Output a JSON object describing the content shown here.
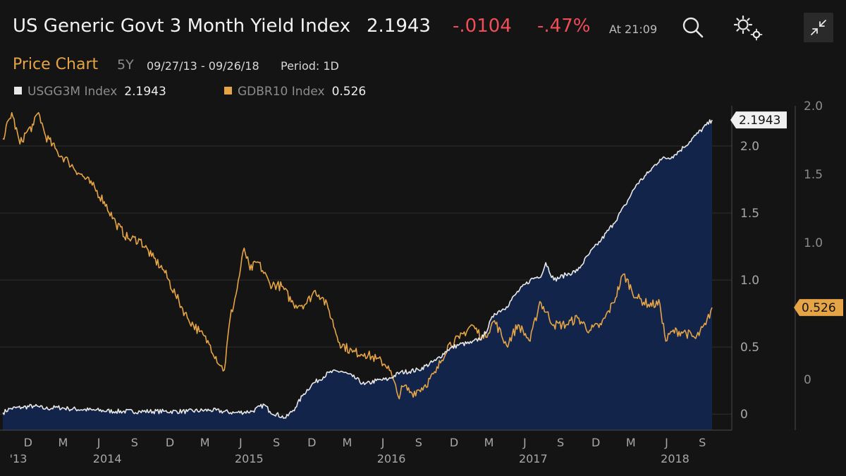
{
  "header": {
    "title": "US Generic Govt 3 Month Yield Index",
    "last": "2.1943",
    "change": "-.0104",
    "change_pct": "-.47%",
    "time": "At 21:09",
    "up_color": "#2ecc71",
    "down_color": "#ef4d57"
  },
  "subheader": {
    "label": "Price Chart",
    "period_button": "5Y",
    "date_range": "09/27/13 - 09/26/18",
    "period": "Period: 1D"
  },
  "icons": {
    "search": "search-icon",
    "settings": "gear-icon",
    "collapse": "collapse-icon"
  },
  "chart_data": {
    "type": "line",
    "colors": {
      "series1": "#e8e8e8",
      "series2": "#e5a546",
      "area": "#13244a",
      "grid": "#2e2e2e"
    },
    "grid": true,
    "x_ticks": [
      {
        "label": "D",
        "date": "2013-12-01",
        "year": "'13"
      },
      {
        "label": "M",
        "date": "2014-03-01"
      },
      {
        "label": "J",
        "date": "2014-06-01",
        "year": "2014"
      },
      {
        "label": "S",
        "date": "2014-09-01"
      },
      {
        "label": "D",
        "date": "2014-12-01"
      },
      {
        "label": "M",
        "date": "2015-03-01"
      },
      {
        "label": "J",
        "date": "2015-06-01",
        "year": "2015"
      },
      {
        "label": "S",
        "date": "2015-09-01"
      },
      {
        "label": "D",
        "date": "2015-12-01"
      },
      {
        "label": "M",
        "date": "2016-03-01"
      },
      {
        "label": "J",
        "date": "2016-06-01",
        "year": "2016"
      },
      {
        "label": "S",
        "date": "2016-09-01"
      },
      {
        "label": "D",
        "date": "2016-12-01"
      },
      {
        "label": "M",
        "date": "2017-03-01"
      },
      {
        "label": "J",
        "date": "2017-06-01",
        "year": "2017"
      },
      {
        "label": "S",
        "date": "2017-09-01"
      },
      {
        "label": "D",
        "date": "2017-12-01"
      },
      {
        "label": "M",
        "date": "2018-03-01"
      },
      {
        "label": "J",
        "date": "2018-06-01",
        "year": "2018"
      },
      {
        "label": "S",
        "date": "2018-09-01"
      }
    ],
    "x_range": [
      "2013-09-27",
      "2018-09-26"
    ],
    "left_axis": {
      "min": -0.12,
      "max": 2.3,
      "ticks": [
        "0",
        "0.5",
        "1.0",
        "1.5",
        "2.0"
      ]
    },
    "right_axis": {
      "min": -0.37,
      "max": 2.0,
      "ticks": [
        "0",
        "0.5",
        "1.0",
        "1.5",
        "2.0"
      ]
    },
    "series": [
      {
        "name": "USGG3M Index",
        "last": "2.1943",
        "axis": "left",
        "points": [
          [
            "2013-09-27",
            0.01
          ],
          [
            "2013-10-15",
            0.04
          ],
          [
            "2013-11-15",
            0.05
          ],
          [
            "2013-12-15",
            0.06
          ],
          [
            "2014-01-15",
            0.04
          ],
          [
            "2014-02-15",
            0.05
          ],
          [
            "2014-03-15",
            0.04
          ],
          [
            "2014-05-15",
            0.03
          ],
          [
            "2014-07-15",
            0.02
          ],
          [
            "2014-09-15",
            0.02
          ],
          [
            "2014-11-15",
            0.02
          ],
          [
            "2015-01-15",
            0.02
          ],
          [
            "2015-03-15",
            0.03
          ],
          [
            "2015-05-15",
            0.01
          ],
          [
            "2015-06-30",
            0.02
          ],
          [
            "2015-08-01",
            0.07
          ],
          [
            "2015-08-15",
            0.02
          ],
          [
            "2015-09-25",
            -0.03
          ],
          [
            "2015-10-20",
            0.05
          ],
          [
            "2015-11-10",
            0.15
          ],
          [
            "2015-12-01",
            0.22
          ],
          [
            "2016-01-15",
            0.31
          ],
          [
            "2016-02-15",
            0.32
          ],
          [
            "2016-03-15",
            0.28
          ],
          [
            "2016-04-15",
            0.22
          ],
          [
            "2016-05-15",
            0.25
          ],
          [
            "2016-06-15",
            0.26
          ],
          [
            "2016-07-15",
            0.31
          ],
          [
            "2016-09-01",
            0.33
          ],
          [
            "2016-10-15",
            0.4
          ],
          [
            "2016-11-15",
            0.48
          ],
          [
            "2016-12-15",
            0.52
          ],
          [
            "2017-01-15",
            0.53
          ],
          [
            "2017-02-15",
            0.58
          ],
          [
            "2017-03-15",
            0.75
          ],
          [
            "2017-04-15",
            0.8
          ],
          [
            "2017-05-10",
            0.9
          ],
          [
            "2017-06-15",
            1.0
          ],
          [
            "2017-07-15",
            1.04
          ],
          [
            "2017-07-25",
            1.13
          ],
          [
            "2017-08-15",
            1.0
          ],
          [
            "2017-09-15",
            1.04
          ],
          [
            "2017-10-15",
            1.07
          ],
          [
            "2017-11-15",
            1.2
          ],
          [
            "2017-12-15",
            1.3
          ],
          [
            "2018-01-15",
            1.42
          ],
          [
            "2018-02-15",
            1.56
          ],
          [
            "2018-03-15",
            1.71
          ],
          [
            "2018-04-15",
            1.8
          ],
          [
            "2018-05-15",
            1.9
          ],
          [
            "2018-06-15",
            1.92
          ],
          [
            "2018-07-15",
            1.99
          ],
          [
            "2018-08-15",
            2.08
          ],
          [
            "2018-09-26",
            2.1943
          ]
        ]
      },
      {
        "name": "GDBR10 Index",
        "last": "0.526",
        "axis": "right",
        "points": [
          [
            "2013-09-27",
            1.76
          ],
          [
            "2013-10-20",
            1.95
          ],
          [
            "2013-11-10",
            1.72
          ],
          [
            "2013-11-25",
            1.8
          ],
          [
            "2013-12-15",
            1.86
          ],
          [
            "2013-12-28",
            1.95
          ],
          [
            "2014-01-15",
            1.78
          ],
          [
            "2014-02-15",
            1.66
          ],
          [
            "2014-03-15",
            1.59
          ],
          [
            "2014-04-15",
            1.5
          ],
          [
            "2014-05-15",
            1.42
          ],
          [
            "2014-06-15",
            1.3
          ],
          [
            "2014-07-15",
            1.14
          ],
          [
            "2014-08-15",
            1.03
          ],
          [
            "2014-09-15",
            1.02
          ],
          [
            "2014-10-15",
            0.9
          ],
          [
            "2014-11-15",
            0.8
          ],
          [
            "2014-12-15",
            0.62
          ],
          [
            "2015-01-15",
            0.45
          ],
          [
            "2015-02-15",
            0.35
          ],
          [
            "2015-03-15",
            0.25
          ],
          [
            "2015-04-10",
            0.1
          ],
          [
            "2015-04-20",
            0.07
          ],
          [
            "2015-05-05",
            0.45
          ],
          [
            "2015-05-20",
            0.62
          ],
          [
            "2015-06-10",
            0.96
          ],
          [
            "2015-06-25",
            0.8
          ],
          [
            "2015-07-15",
            0.86
          ],
          [
            "2015-08-15",
            0.7
          ],
          [
            "2015-09-15",
            0.68
          ],
          [
            "2015-10-15",
            0.55
          ],
          [
            "2015-11-15",
            0.55
          ],
          [
            "2015-12-10",
            0.65
          ],
          [
            "2015-12-28",
            0.6
          ],
          [
            "2016-01-15",
            0.5
          ],
          [
            "2016-02-10",
            0.27
          ],
          [
            "2016-03-15",
            0.2
          ],
          [
            "2016-04-15",
            0.19
          ],
          [
            "2016-05-15",
            0.15
          ],
          [
            "2016-06-15",
            0.1
          ],
          [
            "2016-07-10",
            -0.12
          ],
          [
            "2016-07-25",
            -0.05
          ],
          [
            "2016-08-15",
            -0.1
          ],
          [
            "2016-09-15",
            -0.05
          ],
          [
            "2016-10-15",
            0.05
          ],
          [
            "2016-11-15",
            0.25
          ],
          [
            "2016-12-15",
            0.3
          ],
          [
            "2017-01-15",
            0.4
          ],
          [
            "2017-02-15",
            0.3
          ],
          [
            "2017-03-15",
            0.43
          ],
          [
            "2017-04-15",
            0.25
          ],
          [
            "2017-05-15",
            0.4
          ],
          [
            "2017-06-15",
            0.28
          ],
          [
            "2017-07-10",
            0.57
          ],
          [
            "2017-08-15",
            0.4
          ],
          [
            "2017-09-15",
            0.4
          ],
          [
            "2017-10-15",
            0.45
          ],
          [
            "2017-11-15",
            0.36
          ],
          [
            "2017-12-15",
            0.4
          ],
          [
            "2018-01-15",
            0.56
          ],
          [
            "2018-02-10",
            0.77
          ],
          [
            "2018-03-15",
            0.6
          ],
          [
            "2018-04-15",
            0.55
          ],
          [
            "2018-05-15",
            0.55
          ],
          [
            "2018-05-30",
            0.28
          ],
          [
            "2018-06-15",
            0.35
          ],
          [
            "2018-07-15",
            0.35
          ],
          [
            "2018-08-15",
            0.3
          ],
          [
            "2018-09-10",
            0.4
          ],
          [
            "2018-09-26",
            0.526
          ]
        ]
      }
    ]
  }
}
